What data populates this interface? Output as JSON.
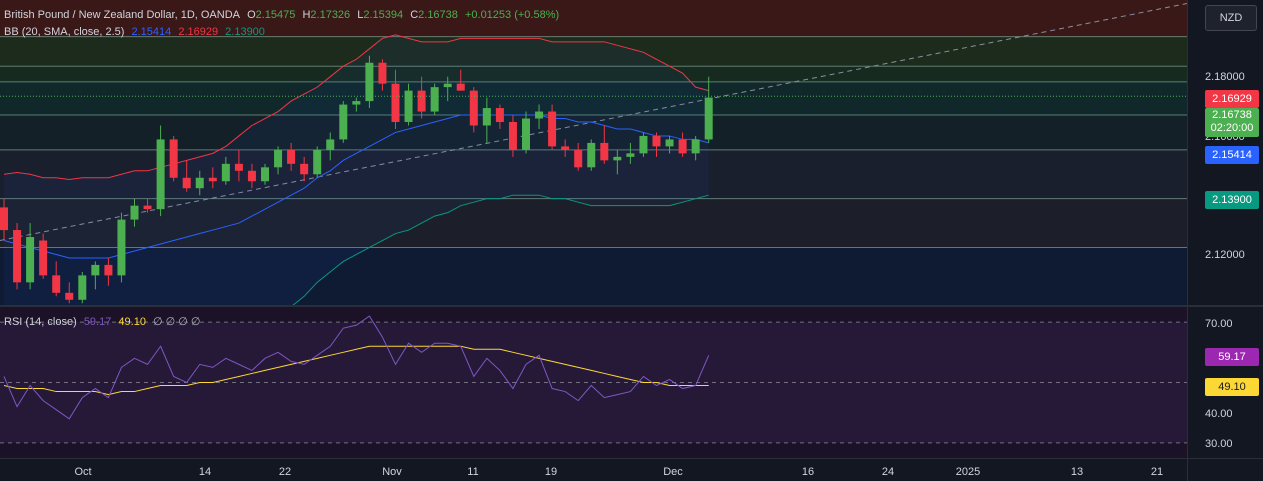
{
  "header": {
    "symbol": "British Pound / New Zealand Dollar, 1D, OANDA",
    "open_label": "O",
    "open": "2.15475",
    "high_label": "H",
    "high": "2.17326",
    "low_label": "L",
    "low": "2.15394",
    "close_label": "C",
    "close": "2.16738",
    "change": "+0.01253 (+0.58%)"
  },
  "bb_legend": {
    "label": "BB (20, SMA, close, 2.5)",
    "basis": "2.15414",
    "upper": "2.16929",
    "lower": "2.13900"
  },
  "rsi_legend": {
    "label": "RSI (14, close)",
    "rsi": "59.17",
    "ma": "49.10",
    "extra": "∅ ∅ ∅ ∅"
  },
  "currency_button": "NZD",
  "price_ticks": [
    "2.18000",
    "2.16000",
    "2.12000"
  ],
  "rsi_ticks": [
    "70.00",
    "40.00",
    "30.00"
  ],
  "price_tags": {
    "upper": "2.16929",
    "last": "2.16738",
    "countdown": "02:20:00",
    "basis": "2.15414",
    "lower": "2.13900",
    "rsi": "59.17",
    "rsi_ma": "49.10"
  },
  "date_ticks": [
    "Oct",
    "14",
    "22",
    "Nov",
    "11",
    "19",
    "Dec",
    "16",
    "24",
    "2025",
    "13",
    "21"
  ],
  "colors": {
    "up": "#4caf50",
    "down": "#f23645",
    "bb_basis": "#2962ff",
    "bb_upper": "#f23645",
    "bb_lower": "#089981",
    "rsi": "#7e57c2",
    "rsi_ma": "#fdd835"
  },
  "chart_data": {
    "type": "candlestick",
    "price_range": [
      2.1075,
      2.195
    ],
    "rsi_range": [
      25,
      75
    ],
    "date_range": [
      "Sep 24",
      "Jan 23"
    ],
    "candles": [
      [
        2.1355,
        2.138,
        2.126,
        2.129
      ],
      [
        2.129,
        2.131,
        2.112,
        2.114
      ],
      [
        2.114,
        2.131,
        2.112,
        2.127
      ],
      [
        2.126,
        2.128,
        2.115,
        2.116
      ],
      [
        2.116,
        2.12,
        2.11,
        2.111
      ],
      [
        2.111,
        2.114,
        2.108,
        2.109
      ],
      [
        2.109,
        2.117,
        2.108,
        2.116
      ],
      [
        2.116,
        2.12,
        2.112,
        2.119
      ],
      [
        2.119,
        2.121,
        2.113,
        2.116
      ],
      [
        2.116,
        2.134,
        2.114,
        2.132
      ],
      [
        2.132,
        2.138,
        2.13,
        2.136
      ],
      [
        2.136,
        2.138,
        2.134,
        2.135
      ],
      [
        2.135,
        2.159,
        2.133,
        2.155
      ],
      [
        2.155,
        2.156,
        2.143,
        2.144
      ],
      [
        2.144,
        2.149,
        2.14,
        2.141
      ],
      [
        2.141,
        2.146,
        2.139,
        2.144
      ],
      [
        2.144,
        2.147,
        2.141,
        2.143
      ],
      [
        2.143,
        2.15,
        2.142,
        2.148
      ],
      [
        2.148,
        2.152,
        2.143,
        2.146
      ],
      [
        2.146,
        2.148,
        2.141,
        2.143
      ],
      [
        2.143,
        2.148,
        2.142,
        2.147
      ],
      [
        2.147,
        2.153,
        2.145,
        2.152
      ],
      [
        2.152,
        2.154,
        2.146,
        2.148
      ],
      [
        2.148,
        2.15,
        2.143,
        2.145
      ],
      [
        2.145,
        2.153,
        2.144,
        2.152
      ],
      [
        2.152,
        2.157,
        2.149,
        2.155
      ],
      [
        2.155,
        2.166,
        2.154,
        2.165
      ],
      [
        2.165,
        2.167,
        2.163,
        2.166
      ],
      [
        2.166,
        2.179,
        2.164,
        2.177
      ],
      [
        2.177,
        2.178,
        2.169,
        2.171
      ],
      [
        2.171,
        2.175,
        2.158,
        2.16
      ],
      [
        2.16,
        2.171,
        2.159,
        2.169
      ],
      [
        2.169,
        2.173,
        2.161,
        2.163
      ],
      [
        2.163,
        2.171,
        2.162,
        2.17
      ],
      [
        2.17,
        2.173,
        2.166,
        2.171
      ],
      [
        2.171,
        2.175,
        2.169,
        2.169
      ],
      [
        2.169,
        2.17,
        2.157,
        2.159
      ],
      [
        2.159,
        2.167,
        2.154,
        2.164
      ],
      [
        2.164,
        2.165,
        2.158,
        2.16
      ],
      [
        2.16,
        2.162,
        2.15,
        2.152
      ],
      [
        2.152,
        2.163,
        2.151,
        2.161
      ],
      [
        2.161,
        2.165,
        2.158,
        2.163
      ],
      [
        2.163,
        2.165,
        2.152,
        2.153
      ],
      [
        2.153,
        2.155,
        2.15,
        2.152
      ],
      [
        2.152,
        2.154,
        2.146,
        2.147
      ],
      [
        2.147,
        2.155,
        2.146,
        2.154
      ],
      [
        2.154,
        2.159,
        2.148,
        2.149
      ],
      [
        2.149,
        2.152,
        2.145,
        2.15
      ],
      [
        2.15,
        2.154,
        2.148,
        2.151
      ],
      [
        2.151,
        2.157,
        2.15,
        2.156
      ],
      [
        2.156,
        2.157,
        2.15,
        2.153
      ],
      [
        2.153,
        2.156,
        2.151,
        2.155
      ],
      [
        2.155,
        2.157,
        2.15,
        2.151
      ],
      [
        2.151,
        2.156,
        2.149,
        2.155
      ],
      [
        2.155,
        2.173,
        2.154,
        2.167
      ]
    ],
    "bb_upper": [
      2.145,
      2.1455,
      2.145,
      2.144,
      2.144,
      2.1435,
      2.144,
      2.144,
      2.144,
      2.145,
      2.146,
      2.146,
      2.147,
      2.148,
      2.149,
      2.15,
      2.151,
      2.153,
      2.156,
      2.159,
      2.161,
      2.163,
      2.166,
      2.168,
      2.17,
      2.173,
      2.176,
      2.178,
      2.181,
      2.184,
      2.185,
      2.184,
      2.183,
      2.183,
      2.183,
      2.184,
      2.184,
      2.184,
      2.184,
      2.184,
      2.184,
      2.184,
      2.183,
      2.183,
      2.183,
      2.183,
      2.183,
      2.182,
      2.181,
      2.18,
      2.178,
      2.176,
      2.174,
      2.17,
      2.169
    ],
    "bb_basis": [
      2.126,
      2.125,
      2.124,
      2.123,
      2.122,
      2.121,
      2.121,
      2.121,
      2.121,
      2.122,
      2.123,
      2.124,
      2.125,
      2.126,
      2.127,
      2.128,
      2.129,
      2.13,
      2.131,
      2.133,
      2.135,
      2.137,
      2.139,
      2.141,
      2.144,
      2.146,
      2.149,
      2.151,
      2.153,
      2.155,
      2.157,
      2.158,
      2.159,
      2.16,
      2.161,
      2.162,
      2.162,
      2.162,
      2.162,
      2.162,
      2.162,
      2.162,
      2.161,
      2.161,
      2.16,
      2.16,
      2.159,
      2.158,
      2.158,
      2.157,
      2.156,
      2.156,
      2.155,
      2.155,
      2.154
    ],
    "bb_lower": [
      2.106,
      2.105,
      2.104,
      2.103,
      2.102,
      2.101,
      2.1,
      2.099,
      2.098,
      2.099,
      2.1,
      2.101,
      2.102,
      2.103,
      2.104,
      2.105,
      2.106,
      2.106,
      2.105,
      2.104,
      2.104,
      2.105,
      2.107,
      2.11,
      2.114,
      2.117,
      2.12,
      2.122,
      2.124,
      2.126,
      2.128,
      2.129,
      2.131,
      2.133,
      2.134,
      2.136,
      2.137,
      2.138,
      2.138,
      2.139,
      2.139,
      2.139,
      2.138,
      2.138,
      2.137,
      2.136,
      2.136,
      2.136,
      2.136,
      2.136,
      2.136,
      2.136,
      2.137,
      2.138,
      2.139
    ],
    "rsi": [
      52,
      42,
      49,
      44,
      41,
      38,
      45,
      48,
      45,
      55,
      58,
      56,
      62,
      52,
      50,
      56,
      55,
      58,
      56,
      54,
      58,
      60,
      57,
      56,
      59,
      62,
      68,
      69,
      72,
      65,
      56,
      63,
      60,
      63,
      63,
      62,
      52,
      58,
      54,
      48,
      56,
      59,
      48,
      47,
      44,
      49,
      45,
      46,
      47,
      52,
      49,
      51,
      48,
      49,
      59
    ],
    "rsi_ma": [
      49,
      48,
      48,
      48,
      47,
      47,
      47,
      47,
      46,
      47,
      47,
      48,
      49,
      49,
      49,
      50,
      50,
      51,
      52,
      53,
      54,
      55,
      56,
      57,
      58,
      59,
      60,
      61,
      62,
      62,
      62,
      62,
      62,
      62,
      62,
      62,
      61,
      61,
      61,
      60,
      59,
      58,
      57,
      56,
      55,
      54,
      53,
      52,
      51,
      50,
      50,
      49,
      49,
      49,
      49
    ]
  }
}
